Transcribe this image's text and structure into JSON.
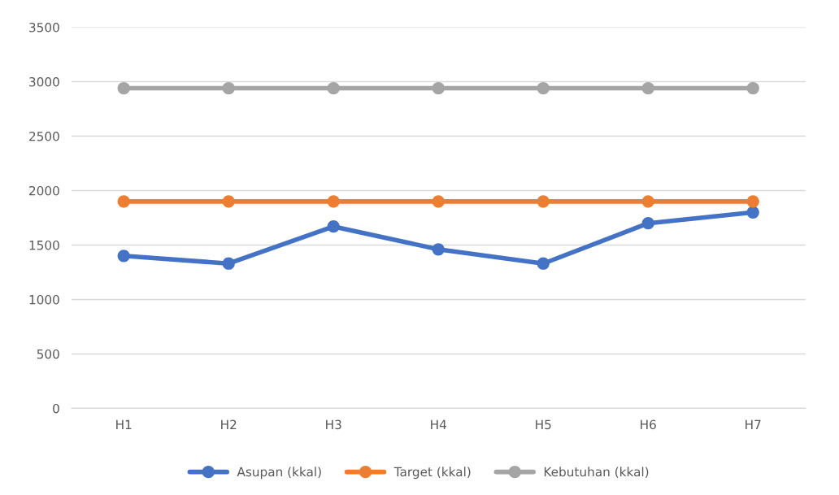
{
  "chart_data": {
    "type": "line",
    "categories": [
      "H1",
      "H2",
      "H3",
      "H4",
      "H5",
      "H6",
      "H7"
    ],
    "series": [
      {
        "name": "Asupan (kkal)",
        "color": "#4472c4",
        "values": [
          1400,
          1330,
          1670,
          1460,
          1330,
          1700,
          1800
        ]
      },
      {
        "name": "Target (kkal)",
        "color": "#ed7d31",
        "values": [
          1900,
          1900,
          1900,
          1900,
          1900,
          1900,
          1900
        ]
      },
      {
        "name": "Kebutuhan (kkal)",
        "color": "#a5a5a5",
        "values": [
          2940,
          2940,
          2940,
          2940,
          2940,
          2940,
          2940
        ]
      }
    ],
    "ylim": [
      0,
      3500
    ],
    "yticks": [
      0,
      500,
      1000,
      1500,
      2000,
      2500,
      3000,
      3500
    ],
    "grid": "y",
    "legend": "bottom",
    "marker": "circle",
    "line_style": "solid"
  }
}
